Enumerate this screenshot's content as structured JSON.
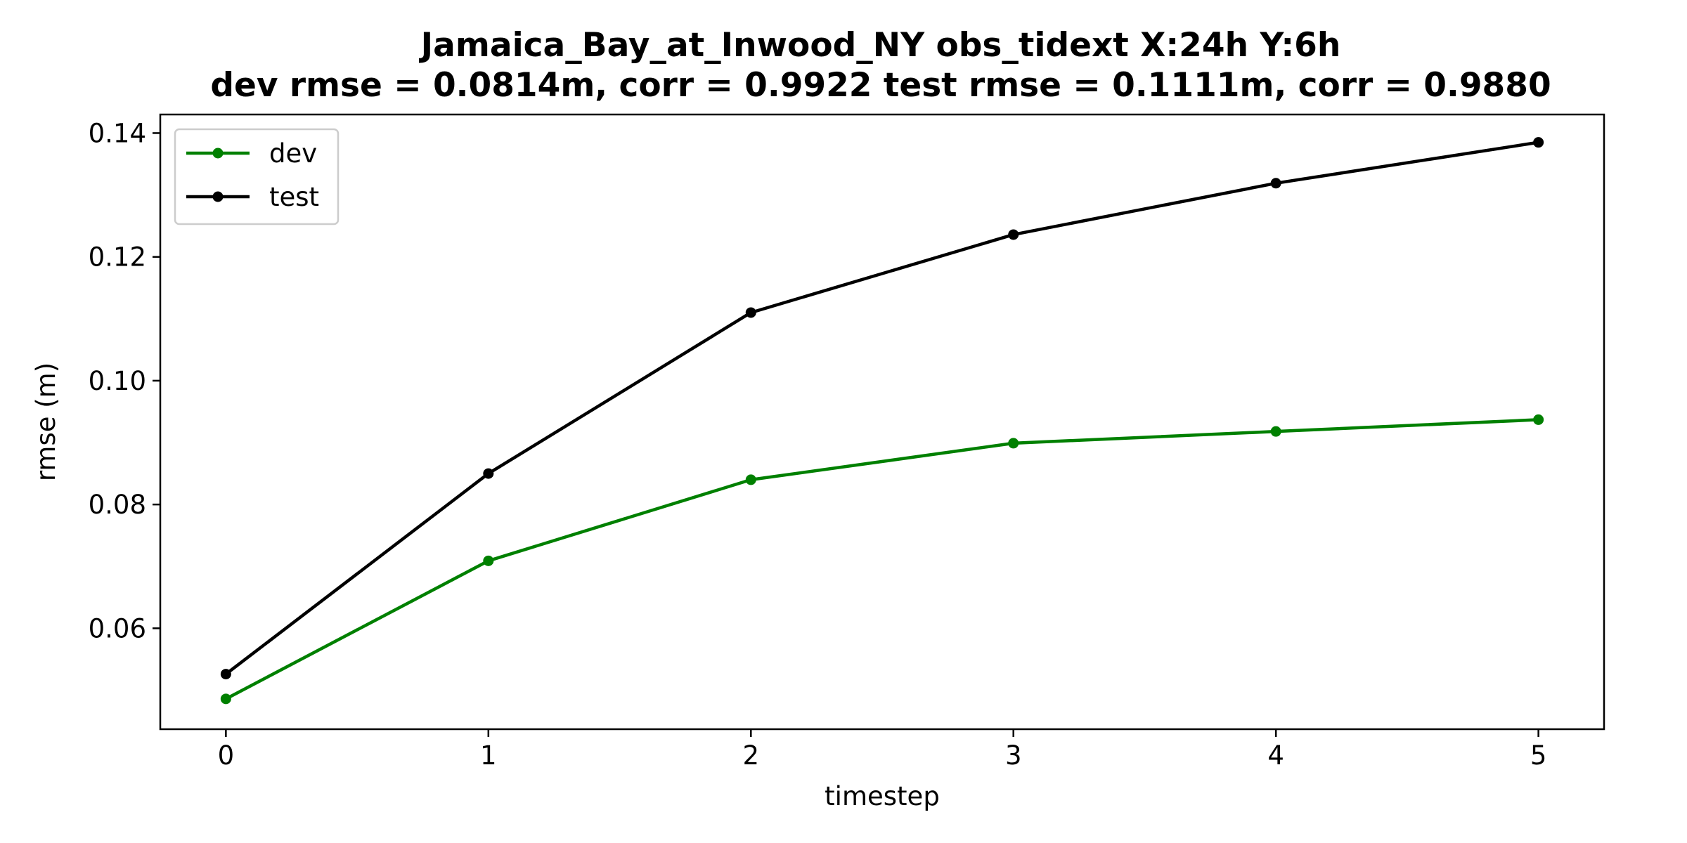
{
  "chart_data": {
    "type": "line",
    "title": "Jamaica_Bay_at_Inwood_NY   obs_tidext   X:24h   Y:6h",
    "subtitle": "dev rmse = 0.0814m, corr = 0.9922   test rmse = 0.1111m, corr = 0.9880",
    "xlabel": "timestep",
    "ylabel": "rmse (m)",
    "x": [
      0,
      1,
      2,
      3,
      4,
      5
    ],
    "xlim": [
      -0.25,
      5.25
    ],
    "ylim": [
      0.0437,
      0.143
    ],
    "xticks": [
      0,
      1,
      2,
      3,
      4,
      5
    ],
    "yticks": [
      0.06,
      0.08,
      0.1,
      0.12,
      0.14
    ],
    "ytick_labels": [
      "0.06",
      "0.08",
      "0.10",
      "0.12",
      "0.14"
    ],
    "grid": false,
    "legend_position": "top-left",
    "series": [
      {
        "name": "dev",
        "color": "#008000",
        "values": [
          0.0486,
          0.0709,
          0.084,
          0.0899,
          0.0918,
          0.0937
        ]
      },
      {
        "name": "test",
        "color": "#000000",
        "values": [
          0.0526,
          0.085,
          0.111,
          0.1236,
          0.1319,
          0.1385
        ]
      }
    ]
  }
}
